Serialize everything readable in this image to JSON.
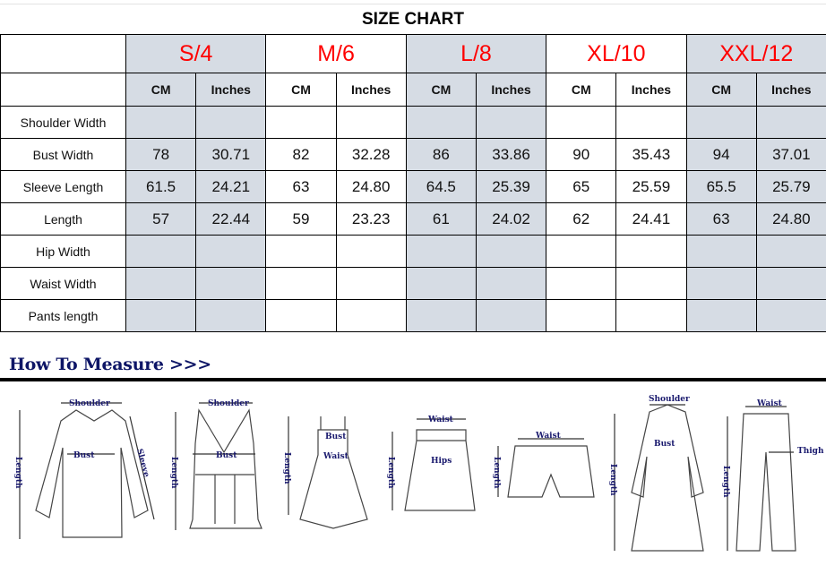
{
  "title": "SIZE CHART",
  "sizes": [
    "S/4",
    "M/6",
    "L/8",
    "XL/10",
    "XXL/12"
  ],
  "units": [
    "CM",
    "Inches"
  ],
  "shaded_color": "#d6dce4",
  "size_color": "#ff0000",
  "rows": [
    {
      "label": "Shoulder Width",
      "values": [
        "",
        "",
        "",
        "",
        "",
        "",
        "",
        "",
        "",
        ""
      ]
    },
    {
      "label": "Bust Width",
      "values": [
        "78",
        "30.71",
        "82",
        "32.28",
        "86",
        "33.86",
        "90",
        "35.43",
        "94",
        "37.01"
      ]
    },
    {
      "label": "Sleeve Length",
      "values": [
        "61.5",
        "24.21",
        "63",
        "24.80",
        "64.5",
        "25.39",
        "65",
        "25.59",
        "65.5",
        "25.79"
      ]
    },
    {
      "label": "Length",
      "values": [
        "57",
        "22.44",
        "59",
        "23.23",
        "61",
        "24.02",
        "62",
        "24.41",
        "63",
        "24.80"
      ]
    },
    {
      "label": "Hip Width",
      "values": [
        "",
        "",
        "",
        "",
        "",
        "",
        "",
        "",
        "",
        ""
      ]
    },
    {
      "label": "Waist Width",
      "values": [
        "",
        "",
        "",
        "",
        "",
        "",
        "",
        "",
        "",
        ""
      ]
    },
    {
      "label": "Pants length",
      "values": [
        "",
        "",
        "",
        "",
        "",
        "",
        "",
        "",
        "",
        ""
      ]
    }
  ],
  "how_to_measure": {
    "heading": "How To Measure >>>",
    "figures": [
      {
        "garment": "blouse",
        "labels": [
          "Shoulder",
          "Bust",
          "Sleeve",
          "Length"
        ]
      },
      {
        "garment": "tank-top",
        "labels": [
          "Shoulder",
          "Bust",
          "Length"
        ]
      },
      {
        "garment": "dress",
        "labels": [
          "Bust",
          "Waist",
          "Length"
        ]
      },
      {
        "garment": "skirt",
        "labels": [
          "Waist",
          "Hips",
          "Length"
        ]
      },
      {
        "garment": "shorts",
        "labels": [
          "Waist",
          "Length"
        ]
      },
      {
        "garment": "coat",
        "labels": [
          "Shoulder",
          "Bust",
          "Length"
        ]
      },
      {
        "garment": "pants",
        "labels": [
          "Waist",
          "Thigh",
          "Length"
        ]
      }
    ]
  }
}
